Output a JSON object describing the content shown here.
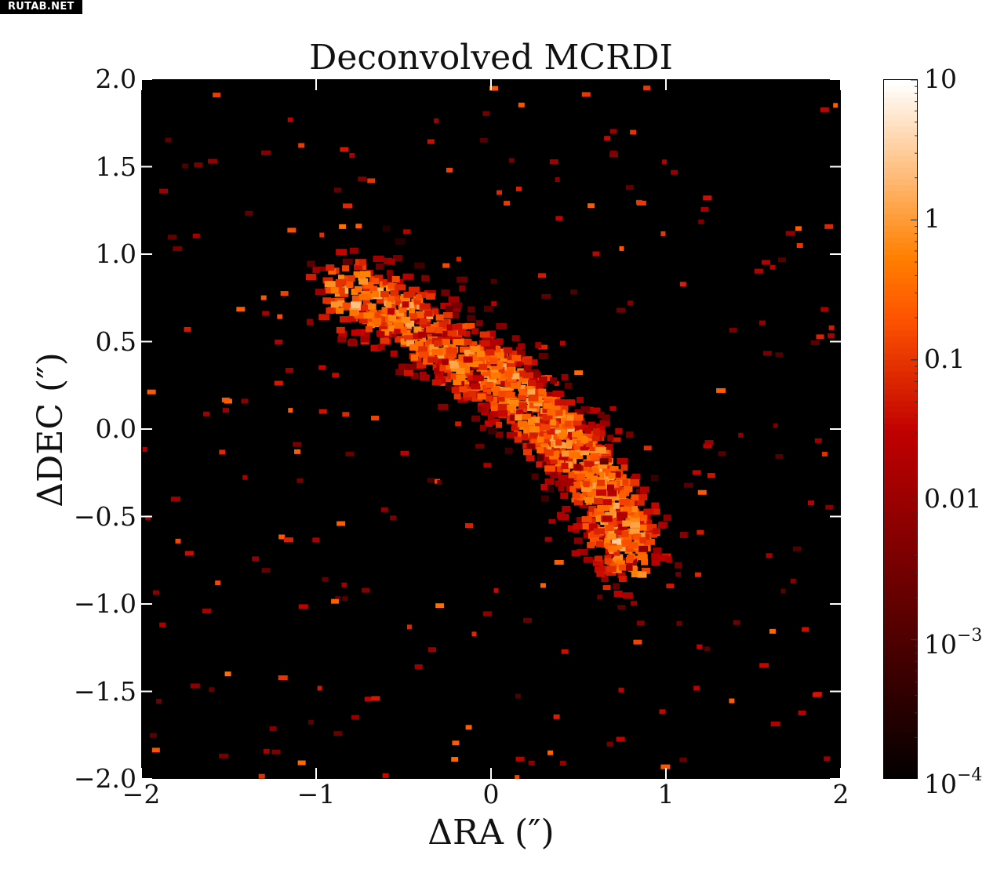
{
  "watermark": "RUTAB.NET",
  "chart_data": {
    "type": "heatmap",
    "title": "Deconvolved MCRDI",
    "xlabel": "ΔRA (″)",
    "ylabel": "ΔDEC (″)",
    "xlim": [
      -2.0,
      2.0
    ],
    "ylim": [
      -2.0,
      2.0
    ],
    "x_ticks": [
      "−2",
      "−1",
      "0",
      "1",
      "2"
    ],
    "y_ticks": [
      "2.0",
      "1.5",
      "1.0",
      "0.5",
      "0.0",
      "−0.5",
      "−1.0",
      "−1.5",
      "−2.0"
    ],
    "colorbar": {
      "scale": "log",
      "range": [
        0.0001,
        10
      ],
      "tick_labels": [
        {
          "base": "10",
          "exp": ""
        },
        {
          "base": "1",
          "exp": ""
        },
        {
          "base": "0.1",
          "exp": ""
        },
        {
          "base": "0.01",
          "exp": ""
        },
        {
          "base": "10",
          "exp": "−3"
        },
        {
          "base": "10",
          "exp": "−4"
        }
      ],
      "colormap": "gist_heat"
    },
    "features": [
      {
        "description": "bright ridge",
        "path": [
          [
            -0.85,
            0.8
          ],
          [
            -0.5,
            0.65
          ],
          [
            -0.2,
            0.4
          ],
          [
            0.1,
            0.25
          ],
          [
            0.35,
            0.0
          ],
          [
            0.55,
            -0.2
          ],
          [
            0.72,
            -0.5
          ],
          [
            0.78,
            -0.75
          ]
        ],
        "peak_value": 10
      }
    ],
    "noise_level": 0.001,
    "grid": false
  }
}
